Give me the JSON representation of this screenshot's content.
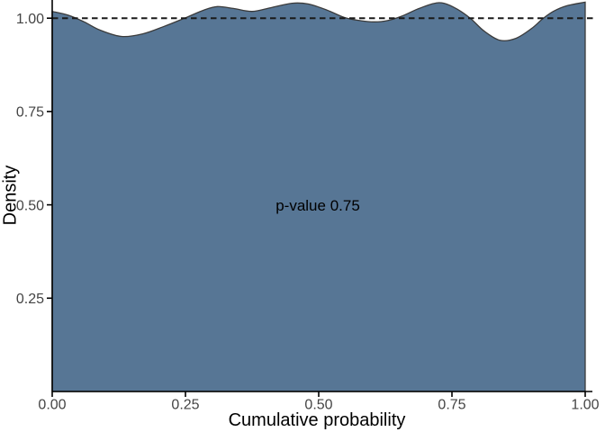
{
  "chart_data": {
    "type": "area",
    "title": "",
    "xlabel": "Cumulative probability",
    "ylabel": "Density",
    "annotation": {
      "text": "p-value 0.75",
      "x": 0.5,
      "y": 0.5
    },
    "xlim": [
      0,
      1.014
    ],
    "ylim": [
      0,
      1.048
    ],
    "grid": false,
    "legend": false,
    "x_ticks": {
      "values": [
        0,
        0.25,
        0.5,
        0.75,
        1.0
      ],
      "labels": [
        "0.00",
        "0.25",
        "0.50",
        "0.75",
        "1.00"
      ]
    },
    "y_ticks": {
      "values": [
        0.25,
        0.5,
        0.75,
        1.0
      ],
      "labels": [
        "0.25",
        "0.50",
        "0.75",
        "1.00"
      ]
    },
    "reference_line": {
      "y": 1.0,
      "style": "dashed"
    },
    "series": [
      {
        "name": "density",
        "x": [
          0,
          0.03,
          0.06,
          0.09,
          0.13,
          0.17,
          0.21,
          0.25,
          0.285,
          0.31,
          0.34,
          0.375,
          0.41,
          0.45,
          0.48,
          0.515,
          0.55,
          0.58,
          0.605,
          0.63,
          0.655,
          0.685,
          0.715,
          0.735,
          0.76,
          0.785,
          0.81,
          0.84,
          0.87,
          0.9,
          0.92,
          0.94,
          0.965,
          1.0
        ],
        "y": [
          1.018,
          1.008,
          0.99,
          0.968,
          0.951,
          0.958,
          0.978,
          1.001,
          1.022,
          1.031,
          1.026,
          1.018,
          1.028,
          1.04,
          1.038,
          1.022,
          1.001,
          0.993,
          0.99,
          0.994,
          1.005,
          1.024,
          1.039,
          1.04,
          1.024,
          0.999,
          0.966,
          0.941,
          0.946,
          0.973,
          0.998,
          1.018,
          1.033,
          1.043
        ]
      }
    ],
    "colors": {
      "fill": "#577695",
      "outline": "#3b3b3b",
      "axis": "#000000",
      "tick_text": "#444444",
      "reference": "#1a1a1a",
      "background": "#ffffff"
    }
  }
}
